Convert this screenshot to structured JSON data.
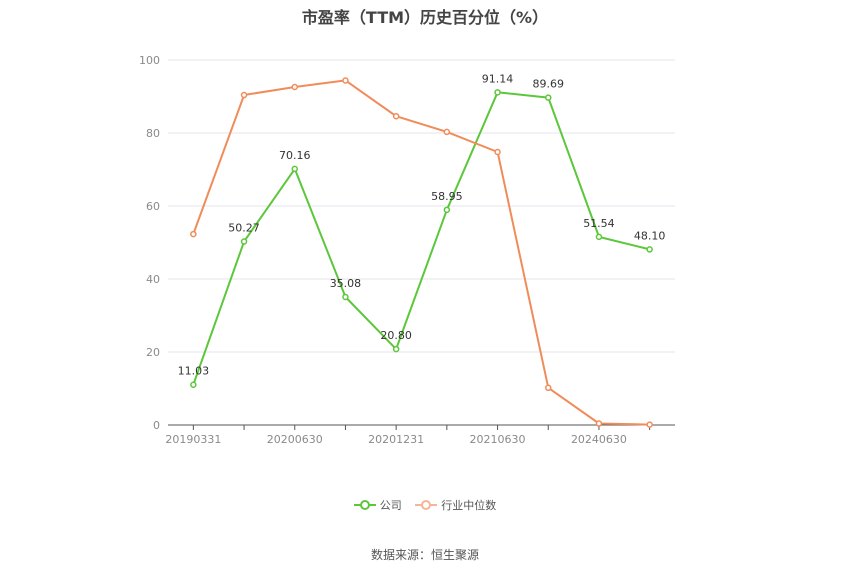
{
  "title": "市盈率（TTM）历史百分位（%）",
  "source": "数据来源：恒生聚源",
  "colors": {
    "company": "#5cc73a",
    "industry": "#f08c5a",
    "grid": "#e6e6ee",
    "axis": "#555555"
  },
  "legend": {
    "company_label": "公司",
    "industry_label": "行业中位数"
  },
  "chart_data": {
    "type": "line",
    "x": [
      "20190331",
      "",
      "20200630",
      "",
      "20201231",
      "",
      "20210630",
      "",
      "20240630",
      ""
    ],
    "x_tick_labels": [
      "20190331",
      "20200630",
      "20201231",
      "20210630",
      "20240630"
    ],
    "y_ticks": [
      0,
      20,
      40,
      60,
      80,
      100
    ],
    "ylim": [
      0,
      100
    ],
    "grid": true,
    "legend_position": "bottom",
    "series": [
      {
        "name": "公司",
        "values": [
          11.03,
          50.27,
          70.16,
          35.08,
          20.8,
          58.95,
          91.14,
          89.69,
          51.54,
          48.1
        ],
        "labels": [
          "11.03",
          "50.27",
          "70.16",
          "35.08",
          "20.80",
          "58.95",
          "91.14",
          "89.69",
          "51.54",
          "48.10"
        ]
      },
      {
        "name": "行业中位数",
        "values": [
          52.3,
          90.4,
          92.6,
          94.4,
          84.6,
          80.3,
          74.8,
          10.2,
          0.4,
          0.1
        ]
      }
    ]
  }
}
